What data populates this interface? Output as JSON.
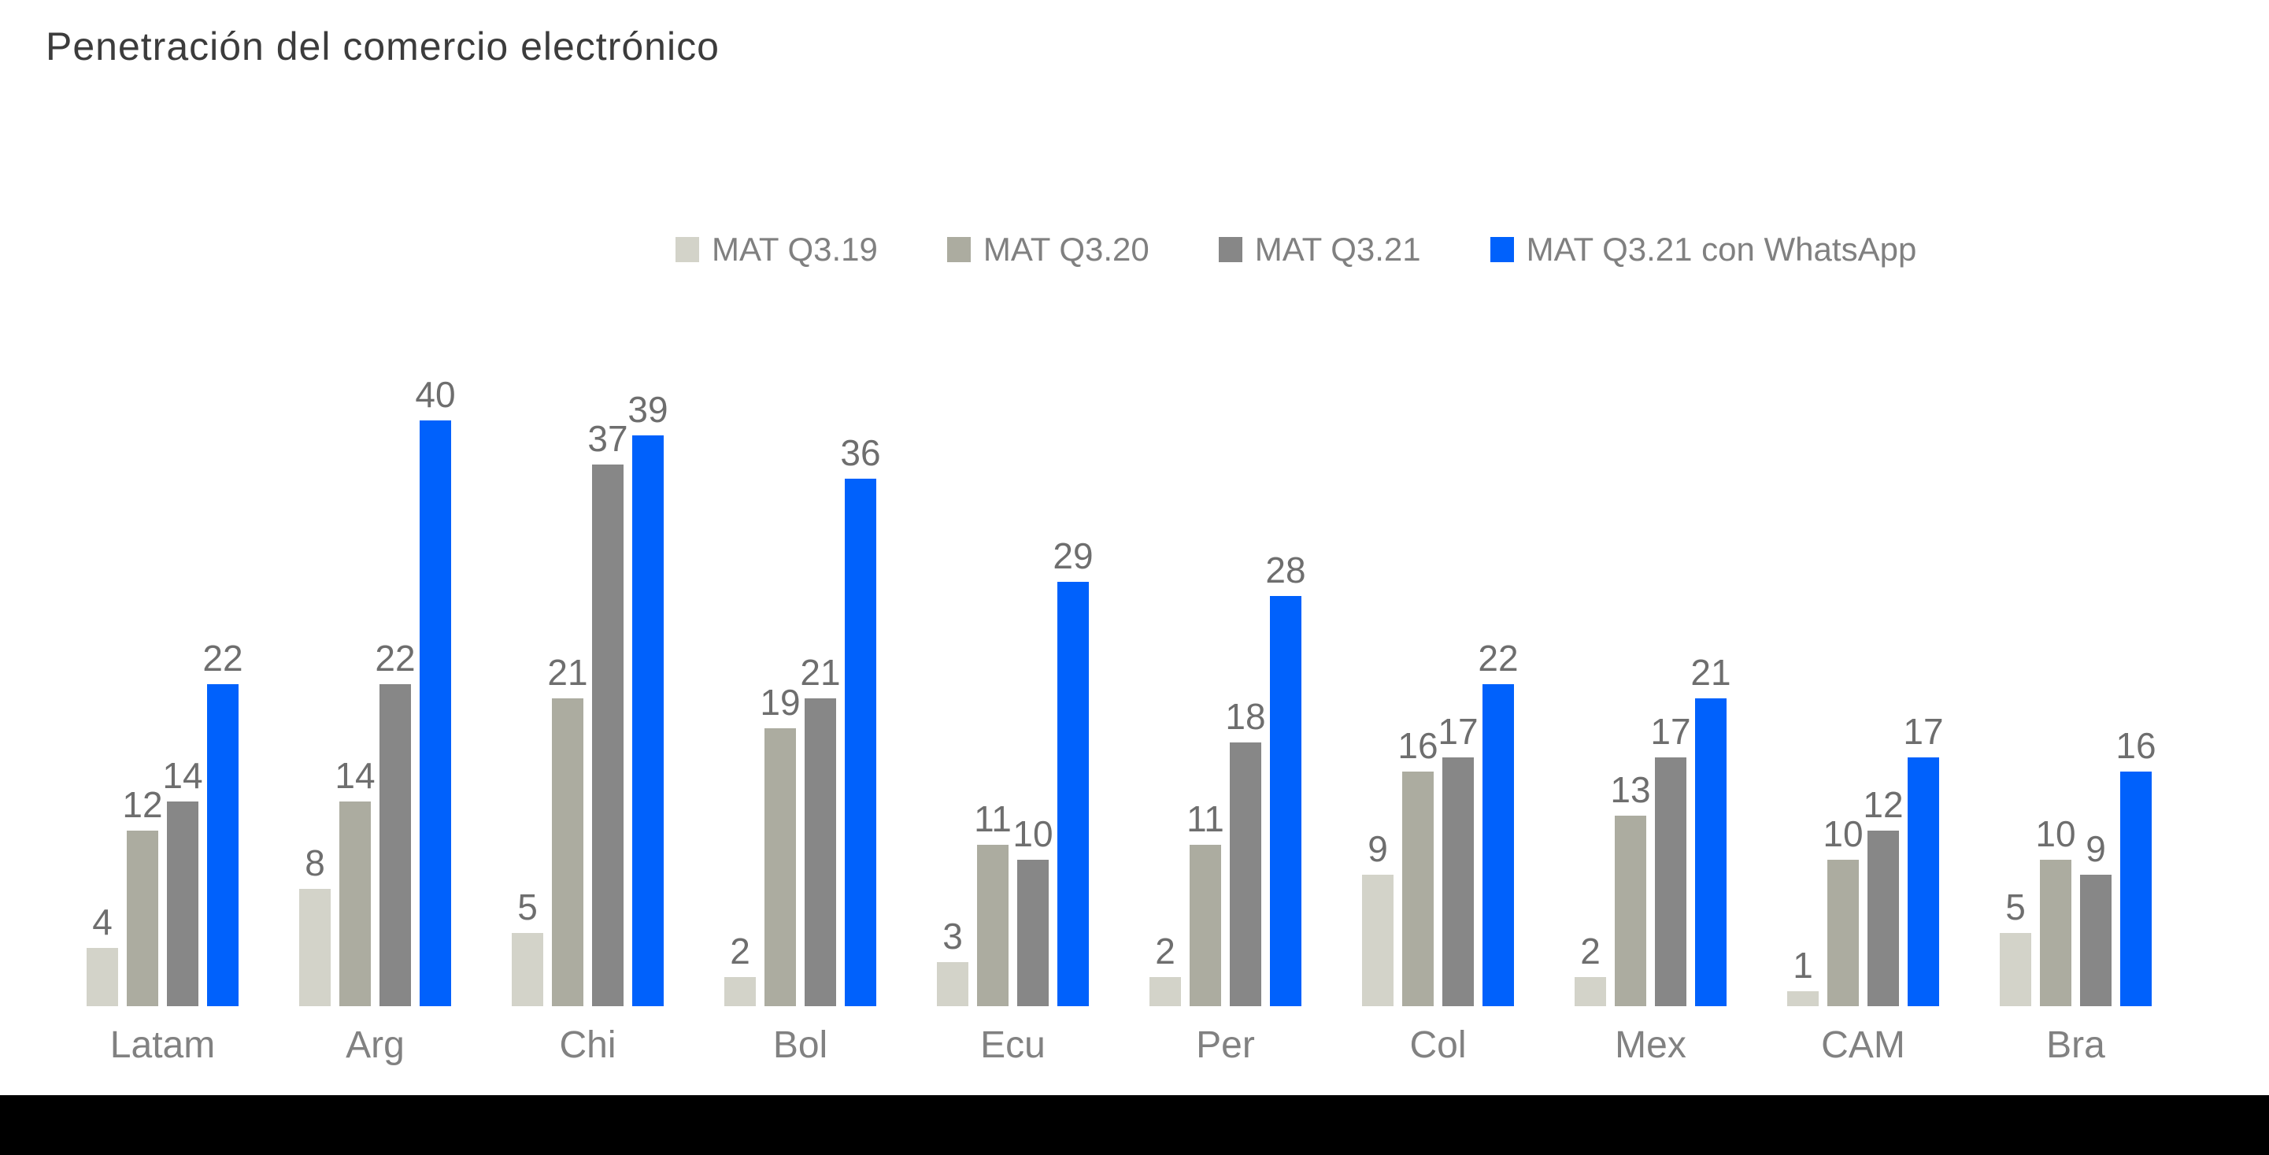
{
  "title": "Penetración del comercio electrónico",
  "footer_bar_color": "#000000",
  "chart_data": {
    "type": "bar",
    "title": "Penetración del comercio electrónico",
    "categories": [
      "Latam",
      "Arg",
      "Chi",
      "Bol",
      "Ecu",
      "Per",
      "Col",
      "Mex",
      "CAM",
      "Bra"
    ],
    "series": [
      {
        "name": "MAT Q3.19",
        "color": "#D3D3C9",
        "values": [
          4,
          8,
          5,
          2,
          3,
          2,
          9,
          2,
          1,
          5
        ]
      },
      {
        "name": "MAT Q3.20",
        "color": "#ACACA0",
        "values": [
          12,
          14,
          21,
          19,
          11,
          11,
          16,
          13,
          10,
          10
        ]
      },
      {
        "name": "MAT Q3.21",
        "color": "#878787",
        "values": [
          14,
          22,
          37,
          21,
          10,
          18,
          17,
          17,
          12,
          9
        ]
      },
      {
        "name": "MAT Q3.21 con WhatsApp",
        "color": "#0061FC",
        "values": [
          22,
          40,
          39,
          36,
          29,
          28,
          22,
          21,
          17,
          16
        ]
      }
    ],
    "value_labels": true,
    "xlabel": "",
    "ylabel": "",
    "ylim": [
      0,
      40
    ],
    "grid": false,
    "legend_position": "top"
  }
}
